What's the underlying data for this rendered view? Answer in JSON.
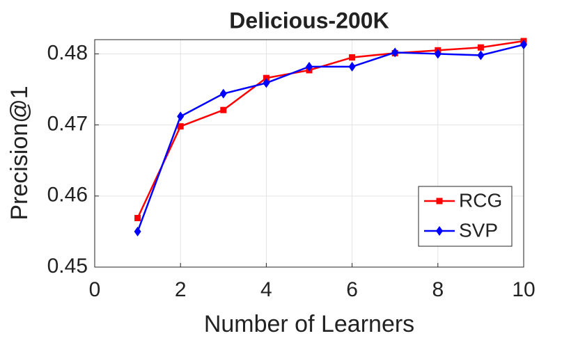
{
  "chart_data": {
    "type": "line",
    "title": "Delicious-200K",
    "x_label": "Number of Learners",
    "y_label": "Precision@1",
    "x": [
      1,
      2,
      3,
      4,
      5,
      6,
      7,
      8,
      9,
      10
    ],
    "series": [
      {
        "name": "RCG",
        "color": "#ff0000",
        "marker": "square",
        "values": [
          0.4569,
          0.4698,
          0.4721,
          0.4766,
          0.4777,
          0.4795,
          0.4801,
          0.4805,
          0.4809,
          0.4818
        ]
      },
      {
        "name": "SVP",
        "color": "#0000ff",
        "marker": "diamond",
        "values": [
          0.455,
          0.4712,
          0.4744,
          0.4759,
          0.4782,
          0.4782,
          0.4802,
          0.48,
          0.4798,
          0.4813
        ]
      }
    ],
    "xlim": [
      0,
      10
    ],
    "xticks": [
      0,
      2,
      4,
      6,
      8,
      10
    ],
    "ylim": [
      0.45,
      0.482
    ],
    "yticks": [
      0.45,
      0.46,
      0.47,
      0.48
    ],
    "grid": true,
    "legend": "lower-right"
  }
}
